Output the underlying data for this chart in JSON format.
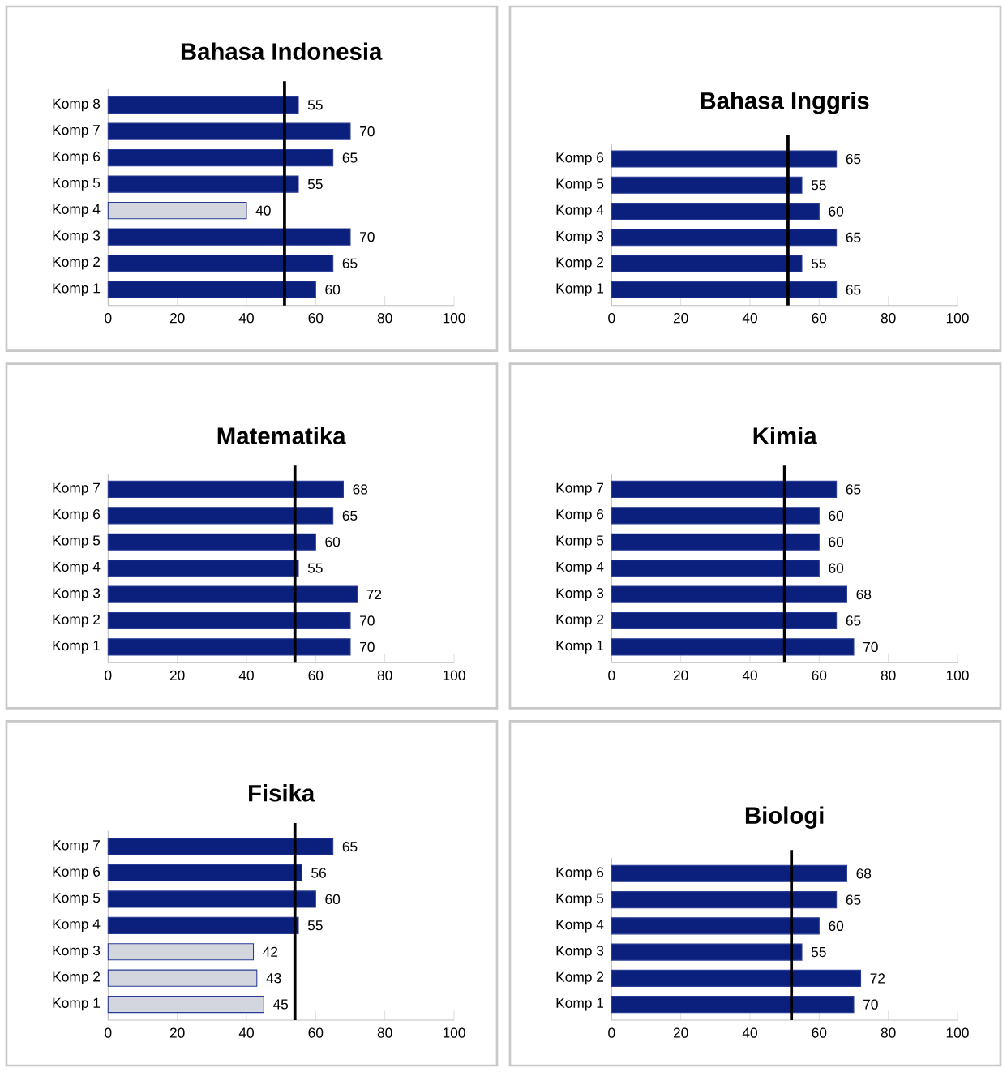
{
  "chart_data": [
    {
      "type": "bar",
      "orientation": "horizontal",
      "title": "Bahasa Indonesia",
      "categories": [
        "Komp 8",
        "Komp 7",
        "Komp 6",
        "Komp 5",
        "Komp 4",
        "Komp 3",
        "Komp 2",
        "Komp 1"
      ],
      "values": [
        55,
        70,
        65,
        55,
        40,
        70,
        65,
        60
      ],
      "colors": [
        "#0b1f7c",
        "#0b1f7c",
        "#0b1f7c",
        "#0b1f7c",
        "#d4d6de",
        "#0b1f7c",
        "#0b1f7c",
        "#0b1f7c"
      ],
      "xlim": [
        0,
        100
      ],
      "xticks": [
        0,
        20,
        40,
        60,
        80,
        100
      ],
      "data_labels": true,
      "ref_lines": [
        {
          "axis": "x",
          "value": 51,
          "color": "#000000"
        }
      ]
    },
    {
      "type": "bar",
      "orientation": "horizontal",
      "title": "Bahasa Inggris",
      "categories": [
        "Komp 6",
        "Komp 5",
        "Komp 4",
        "Komp 3",
        "Komp 2",
        "Komp 1"
      ],
      "values": [
        65,
        55,
        60,
        65,
        55,
        65
      ],
      "colors": [
        "#0b1f7c",
        "#0b1f7c",
        "#0b1f7c",
        "#0b1f7c",
        "#0b1f7c",
        "#0b1f7c"
      ],
      "xlim": [
        0,
        100
      ],
      "xticks": [
        0,
        20,
        40,
        60,
        80,
        100
      ],
      "data_labels": true,
      "ref_lines": [
        {
          "axis": "x",
          "value": 51,
          "color": "#000000"
        }
      ]
    },
    {
      "type": "bar",
      "orientation": "horizontal",
      "title": "Matematika",
      "categories": [
        "Komp 7",
        "Komp 6",
        "Komp 5",
        "Komp 4",
        "Komp 3",
        "Komp 2",
        "Komp 1"
      ],
      "values": [
        68,
        65,
        60,
        55,
        72,
        70,
        70
      ],
      "colors": [
        "#0b1f7c",
        "#0b1f7c",
        "#0b1f7c",
        "#0b1f7c",
        "#0b1f7c",
        "#0b1f7c",
        "#0b1f7c"
      ],
      "xlim": [
        0,
        100
      ],
      "xticks": [
        0,
        20,
        40,
        60,
        80,
        100
      ],
      "data_labels": true,
      "ref_lines": [
        {
          "axis": "x",
          "value": 54,
          "color": "#000000"
        }
      ]
    },
    {
      "type": "bar",
      "orientation": "horizontal",
      "title": "Kimia",
      "categories": [
        "Komp 7",
        "Komp 6",
        "Komp 5",
        "Komp 4",
        "Komp 3",
        "Komp 2",
        "Komp 1"
      ],
      "values": [
        65,
        60,
        60,
        60,
        68,
        65,
        70
      ],
      "colors": [
        "#0b1f7c",
        "#0b1f7c",
        "#0b1f7c",
        "#0b1f7c",
        "#0b1f7c",
        "#0b1f7c",
        "#0b1f7c"
      ],
      "xlim": [
        0,
        100
      ],
      "xticks": [
        0,
        20,
        40,
        60,
        80,
        100
      ],
      "data_labels": true,
      "ref_lines": [
        {
          "axis": "x",
          "value": 50,
          "color": "#000000"
        }
      ]
    },
    {
      "type": "bar",
      "orientation": "horizontal",
      "title": "Fisika",
      "categories": [
        "Komp 7",
        "Komp 6",
        "Komp 5",
        "Komp 4",
        "Komp 3",
        "Komp 2",
        "Komp 1"
      ],
      "values": [
        65,
        56,
        60,
        55,
        42,
        43,
        45
      ],
      "colors": [
        "#0b1f7c",
        "#0b1f7c",
        "#0b1f7c",
        "#0b1f7c",
        "#d4d6de",
        "#d4d6de",
        "#d4d6de"
      ],
      "xlim": [
        0,
        100
      ],
      "xticks": [
        0,
        20,
        40,
        60,
        80,
        100
      ],
      "data_labels": true,
      "ref_lines": [
        {
          "axis": "x",
          "value": 54,
          "color": "#000000"
        }
      ]
    },
    {
      "type": "bar",
      "orientation": "horizontal",
      "title": "Biologi",
      "categories": [
        "Komp 6",
        "Komp 5",
        "Komp 4",
        "Komp 3",
        "Komp 2",
        "Komp 1"
      ],
      "values": [
        68,
        65,
        60,
        55,
        72,
        70
      ],
      "colors": [
        "#0b1f7c",
        "#0b1f7c",
        "#0b1f7c",
        "#0b1f7c",
        "#0b1f7c",
        "#0b1f7c"
      ],
      "xlim": [
        0,
        100
      ],
      "xticks": [
        0,
        20,
        40,
        60,
        80,
        100
      ],
      "data_labels": true,
      "ref_lines": [
        {
          "axis": "x",
          "value": 52,
          "color": "#000000"
        }
      ]
    }
  ]
}
